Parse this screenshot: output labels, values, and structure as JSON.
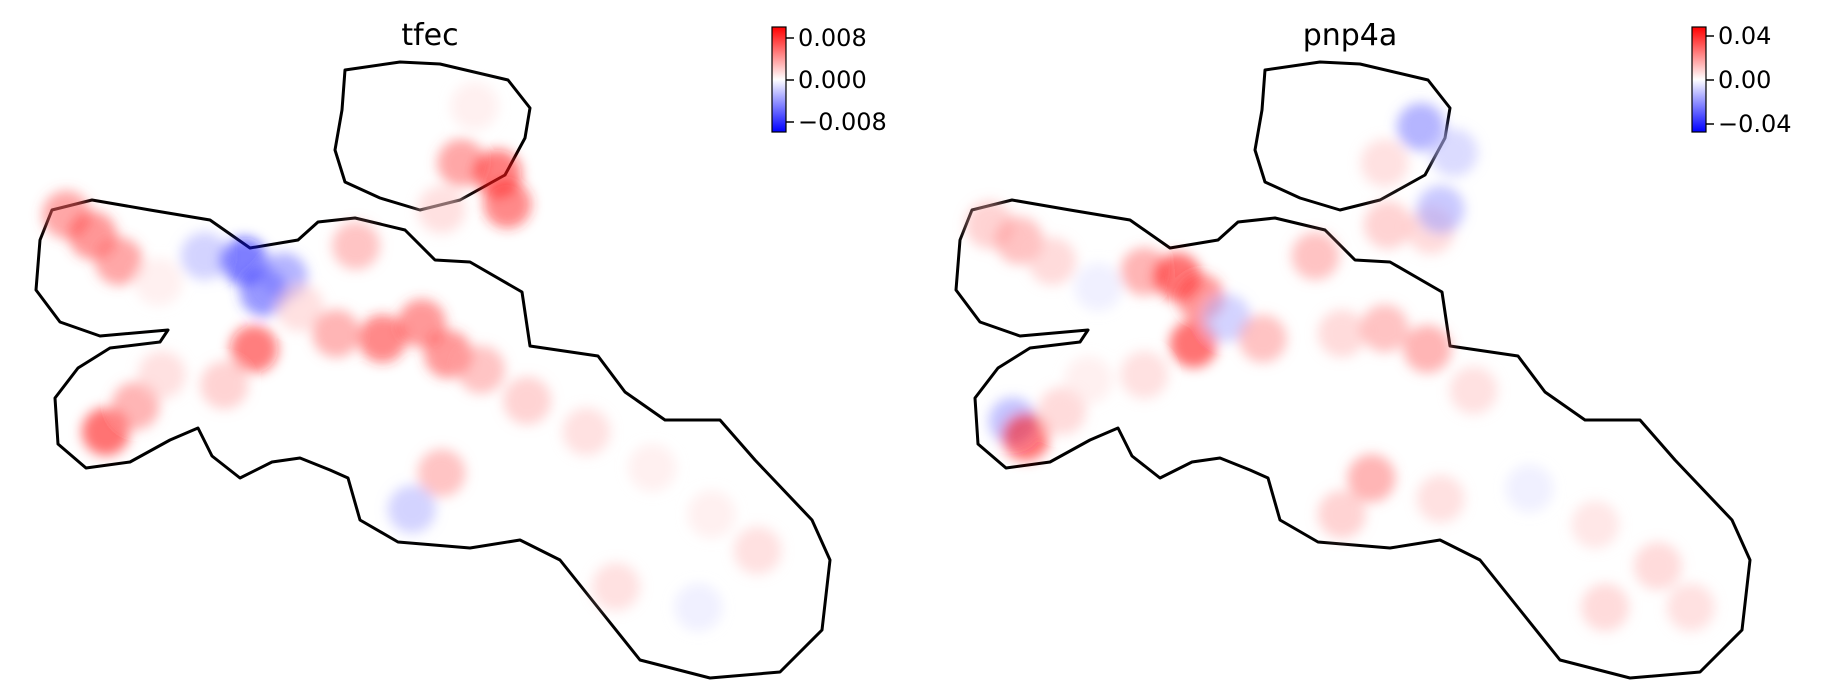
{
  "figure": {
    "background": "#ffffff"
  },
  "chart_data": [
    {
      "type": "scatter",
      "title": "tfec",
      "colormap": [
        "#0000ff",
        "#ffffff",
        "#ff0000"
      ],
      "colorbar": {
        "ticks": [
          "0.008",
          "0.000",
          "−0.008"
        ],
        "vmin": -0.0095,
        "vmax": 0.0095
      },
      "axes_visible": false,
      "grid": false,
      "points": [
        {
          "x": 0.8,
          "y": 9.2,
          "v": 0.006
        },
        {
          "x": 1.6,
          "y": 8.8,
          "v": 0.007
        },
        {
          "x": 2.4,
          "y": 8.3,
          "v": 0.006
        },
        {
          "x": 3.6,
          "y": 7.9,
          "v": 0.001
        },
        {
          "x": 5.0,
          "y": 8.4,
          "v": -0.003
        },
        {
          "x": 6.2,
          "y": 8.3,
          "v": -0.009
        },
        {
          "x": 6.8,
          "y": 7.7,
          "v": -0.007
        },
        {
          "x": 7.4,
          "y": 8.0,
          "v": -0.005
        },
        {
          "x": 7.9,
          "y": 7.4,
          "v": 0.002
        },
        {
          "x": 6.5,
          "y": 6.6,
          "v": 0.009
        },
        {
          "x": 5.6,
          "y": 5.9,
          "v": 0.003
        },
        {
          "x": 2.0,
          "y": 5.0,
          "v": 0.01
        },
        {
          "x": 2.9,
          "y": 5.5,
          "v": 0.005
        },
        {
          "x": 3.7,
          "y": 6.1,
          "v": 0.002
        },
        {
          "x": 9.0,
          "y": 6.9,
          "v": 0.005
        },
        {
          "x": 9.6,
          "y": 8.6,
          "v": 0.004
        },
        {
          "x": 10.4,
          "y": 6.8,
          "v": 0.008
        },
        {
          "x": 11.6,
          "y": 7.1,
          "v": 0.007
        },
        {
          "x": 12.4,
          "y": 6.5,
          "v": 0.007
        },
        {
          "x": 13.4,
          "y": 6.2,
          "v": 0.004
        },
        {
          "x": 14.8,
          "y": 5.6,
          "v": 0.003
        },
        {
          "x": 16.6,
          "y": 5.0,
          "v": 0.002
        },
        {
          "x": 18.6,
          "y": 4.3,
          "v": 0.001
        },
        {
          "x": 20.4,
          "y": 3.4,
          "v": 0.001
        },
        {
          "x": 21.8,
          "y": 2.7,
          "v": 0.002
        },
        {
          "x": 20.0,
          "y": 1.6,
          "v": -0.001
        },
        {
          "x": 17.5,
          "y": 2.0,
          "v": 0.002
        },
        {
          "x": 12.2,
          "y": 4.2,
          "v": 0.004
        },
        {
          "x": 11.3,
          "y": 3.5,
          "v": -0.003
        },
        {
          "x": 12.8,
          "y": 10.2,
          "v": 0.006
        },
        {
          "x": 13.9,
          "y": 10.0,
          "v": 0.009
        },
        {
          "x": 14.2,
          "y": 9.4,
          "v": 0.008
        },
        {
          "x": 12.2,
          "y": 9.3,
          "v": 0.002
        },
        {
          "x": 13.2,
          "y": 11.3,
          "v": 0.001
        }
      ]
    },
    {
      "type": "scatter",
      "title": "pnp4a",
      "colormap": [
        "#0000ff",
        "#ffffff",
        "#ff0000"
      ],
      "colorbar": {
        "ticks": [
          "0.04",
          "0.00",
          "−0.04"
        ],
        "vmin": -0.047,
        "vmax": 0.047
      },
      "axes_visible": false,
      "grid": false,
      "points": [
        {
          "x": 0.9,
          "y": 9.0,
          "v": 0.015
        },
        {
          "x": 1.8,
          "y": 8.7,
          "v": 0.02
        },
        {
          "x": 2.8,
          "y": 8.3,
          "v": 0.012
        },
        {
          "x": 4.2,
          "y": 7.8,
          "v": -0.005
        },
        {
          "x": 5.6,
          "y": 8.1,
          "v": 0.025
        },
        {
          "x": 6.6,
          "y": 8.0,
          "v": 0.05
        },
        {
          "x": 7.3,
          "y": 7.6,
          "v": 0.035
        },
        {
          "x": 7.1,
          "y": 6.7,
          "v": 0.045
        },
        {
          "x": 8.1,
          "y": 7.2,
          "v": -0.015
        },
        {
          "x": 9.2,
          "y": 6.8,
          "v": 0.02
        },
        {
          "x": 5.6,
          "y": 6.1,
          "v": 0.01
        },
        {
          "x": 1.6,
          "y": 5.2,
          "v": -0.02
        },
        {
          "x": 2.0,
          "y": 4.9,
          "v": 0.045
        },
        {
          "x": 3.1,
          "y": 5.4,
          "v": 0.012
        },
        {
          "x": 3.9,
          "y": 6.0,
          "v": 0.005
        },
        {
          "x": 10.8,
          "y": 8.4,
          "v": 0.02
        },
        {
          "x": 11.6,
          "y": 6.9,
          "v": 0.012
        },
        {
          "x": 12.9,
          "y": 7.0,
          "v": 0.02
        },
        {
          "x": 14.2,
          "y": 6.6,
          "v": 0.025
        },
        {
          "x": 15.6,
          "y": 5.8,
          "v": 0.01
        },
        {
          "x": 12.5,
          "y": 4.1,
          "v": 0.025
        },
        {
          "x": 11.6,
          "y": 3.4,
          "v": 0.015
        },
        {
          "x": 14.6,
          "y": 3.7,
          "v": 0.01
        },
        {
          "x": 17.3,
          "y": 3.9,
          "v": -0.005
        },
        {
          "x": 19.3,
          "y": 3.2,
          "v": 0.008
        },
        {
          "x": 21.2,
          "y": 2.4,
          "v": 0.012
        },
        {
          "x": 22.2,
          "y": 1.6,
          "v": 0.01
        },
        {
          "x": 19.6,
          "y": 1.6,
          "v": 0.012
        },
        {
          "x": 12.9,
          "y": 10.2,
          "v": 0.01
        },
        {
          "x": 14.0,
          "y": 10.9,
          "v": -0.025
        },
        {
          "x": 15.0,
          "y": 10.4,
          "v": -0.012
        },
        {
          "x": 13.0,
          "y": 9.0,
          "v": 0.015
        },
        {
          "x": 14.3,
          "y": 8.9,
          "v": 0.012
        },
        {
          "x": 14.6,
          "y": 9.3,
          "v": -0.018
        }
      ]
    }
  ]
}
